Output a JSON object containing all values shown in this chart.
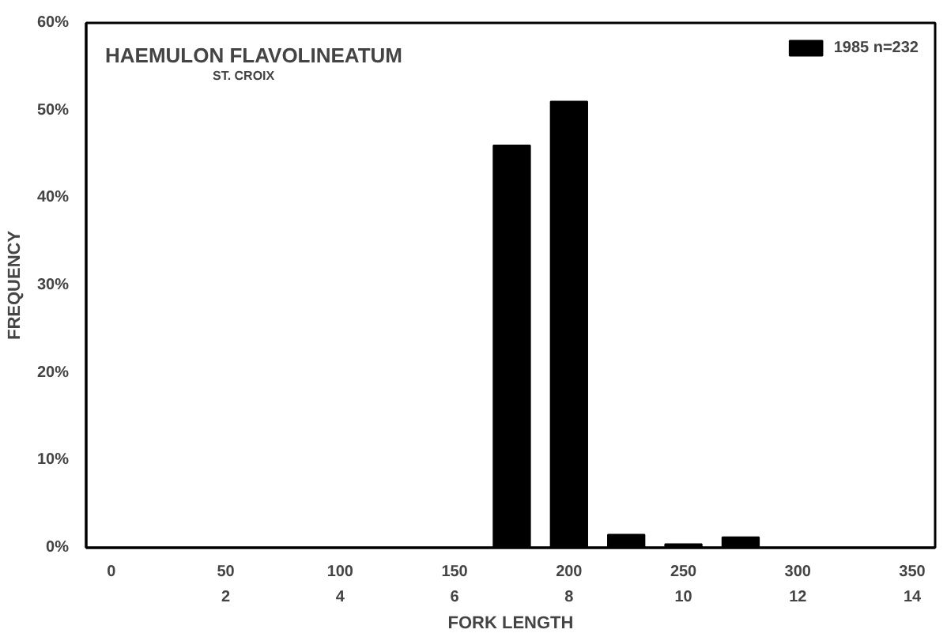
{
  "chart_data": {
    "type": "bar",
    "title": "HAEMULON FLAVOLINEATUM",
    "subtitle": "ST. CROIX",
    "xlabel": "FORK LENGTH",
    "ylabel": "FREQUENCY",
    "x": [
      175,
      200,
      225,
      250,
      275
    ],
    "series": [
      {
        "name": "1985 n=232",
        "color": "#000000",
        "values": [
          46,
          51,
          1.5,
          0.4,
          1.2
        ]
      }
    ],
    "xlim": [
      -11,
      360
    ],
    "xticks": [
      0,
      50,
      100,
      150,
      200,
      250,
      300,
      350
    ],
    "x2lim": [
      -0.44,
      14.4
    ],
    "x2ticks": [
      2,
      4,
      6,
      8,
      10,
      12,
      14
    ],
    "ylim": [
      0,
      60
    ],
    "yticks": [
      {
        "value": 0,
        "label": "0%"
      },
      {
        "value": 10,
        "label": "10%"
      },
      {
        "value": 20,
        "label": "20%"
      },
      {
        "value": 30,
        "label": "30%"
      },
      {
        "value": 40,
        "label": "40%"
      },
      {
        "value": 50,
        "label": "50%"
      },
      {
        "value": 60,
        "label": "60%"
      }
    ],
    "grid": false,
    "legend": "top right"
  }
}
